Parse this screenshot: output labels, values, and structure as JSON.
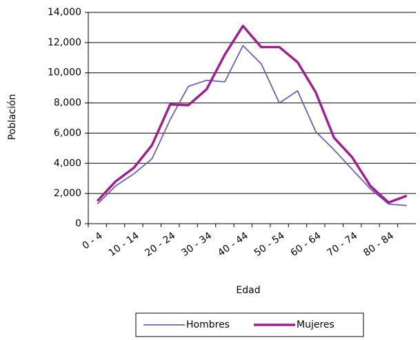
{
  "chart_data": {
    "type": "line",
    "x_label": "Edad",
    "y_label": "Población",
    "categories": [
      "0 - 4",
      null,
      "10 - 14",
      null,
      "20 - 24",
      null,
      "30 - 34",
      null,
      "40 - 44",
      null,
      "50 - 54",
      null,
      "60 - 64",
      null,
      "70 - 74",
      null,
      "80 - 84",
      null
    ],
    "series": [
      {
        "name": "Hombres",
        "color": "#6b5fb0",
        "values": [
          1300,
          2500,
          3300,
          4300,
          6900,
          9100,
          9500,
          9400,
          11800,
          10600,
          8000,
          8800,
          6100,
          4900,
          3600,
          2300,
          1300,
          1200
        ]
      },
      {
        "name": "Mujeres",
        "color": "#a0208f",
        "values": [
          1500,
          2800,
          3700,
          5200,
          7900,
          7850,
          8900,
          11200,
          13100,
          11700,
          11700,
          10700,
          8700,
          5700,
          4400,
          2500,
          1400,
          1850
        ]
      }
    ],
    "ylim": [
      0,
      14000
    ],
    "yticks": [
      0,
      {
        "value": 2000,
        "label": "2,000"
      },
      {
        "value": 4000,
        "label": "4,000"
      },
      {
        "value": 6000,
        "label": "6,000"
      },
      {
        "value": 8000,
        "label": "8,000"
      },
      {
        "value": 10000,
        "label": "10,000"
      },
      {
        "value": 12000,
        "label": "12,000"
      },
      {
        "value": 14000,
        "label": "14,000"
      }
    ],
    "grid": true,
    "legend": "bottom"
  }
}
